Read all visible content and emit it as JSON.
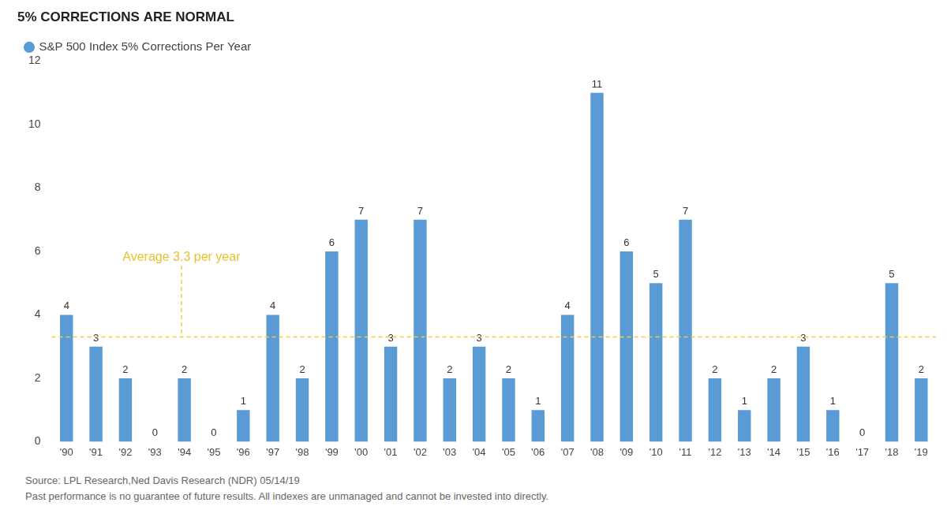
{
  "chart_data": {
    "type": "bar",
    "title": "5% CORRECTIONS ARE NORMAL",
    "categories": [
      "'90",
      "'91",
      "'92",
      "'93",
      "'94",
      "'95",
      "'96",
      "'97",
      "'98",
      "'99",
      "'00",
      "'01",
      "'02",
      "'03",
      "'04",
      "'05",
      "'06",
      "'07",
      "'08",
      "'09",
      "'10",
      "'11",
      "'12",
      "'13",
      "'14",
      "'15",
      "'16",
      "'17",
      "'18",
      "'19"
    ],
    "series": [
      {
        "name": "S&P 500 Index 5% Corrections Per Year",
        "color": "#5b9bd5",
        "values": [
          4,
          3,
          2,
          0,
          2,
          0,
          1,
          4,
          2,
          6,
          7,
          3,
          7,
          2,
          3,
          2,
          1,
          4,
          11,
          6,
          5,
          7,
          2,
          1,
          2,
          3,
          1,
          0,
          5,
          2
        ]
      }
    ],
    "ylim": [
      0,
      12
    ],
    "yticks": [
      0,
      2,
      4,
      6,
      8,
      10,
      12
    ],
    "grid": false,
    "legend": "top left",
    "data_labels": true,
    "annotations": [
      {
        "text": "Average 3.3 per year",
        "y": 3.3
      }
    ],
    "notes": [
      "Source: LPL Research,Ned Davis Research (NDR) 05/14/19",
      "Past performance is no guarantee of future results. All indexes are unmanaged and cannot be invested into directly."
    ]
  }
}
